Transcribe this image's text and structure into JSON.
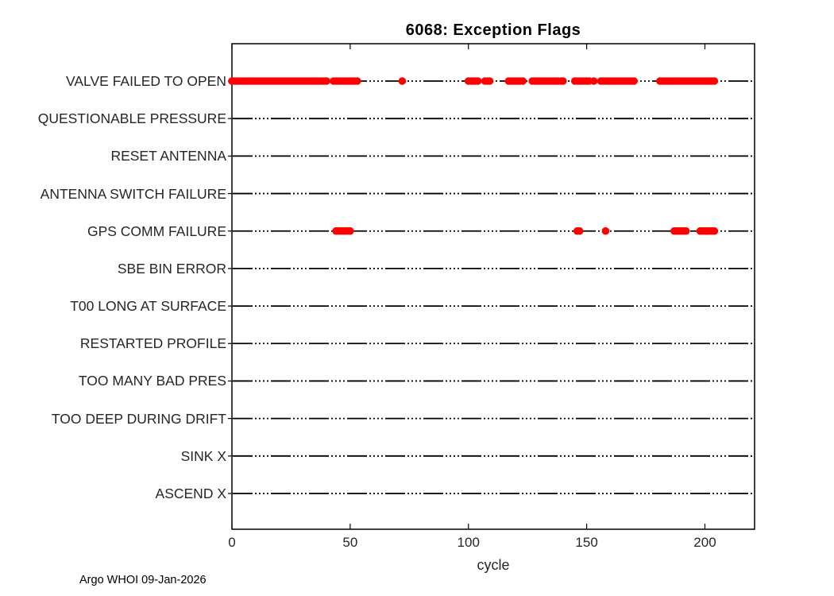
{
  "chart_data": {
    "type": "scatter",
    "title": "6068: Exception Flags",
    "xlabel": "cycle",
    "ylabel": "",
    "xlim": [
      0,
      221
    ],
    "xticks": [
      0,
      50,
      100,
      150,
      200
    ],
    "grid": false,
    "legend": "none",
    "marker": "dot",
    "marker_color": "#ff0000",
    "baseline_color": "#000000",
    "axis_color": "#000000",
    "tick_text_color": "#262626",
    "rows": [
      {
        "label": "VALVE FAILED TO OPEN",
        "runs": [
          [
            0,
            40
          ],
          [
            43,
            53
          ],
          [
            72,
            72
          ],
          [
            100,
            104
          ],
          [
            107,
            109
          ],
          [
            117,
            123
          ],
          [
            127,
            140
          ],
          [
            145,
            151
          ],
          [
            153,
            153
          ],
          [
            156,
            170
          ],
          [
            181,
            204
          ]
        ]
      },
      {
        "label": "QUESTIONABLE PRESSURE",
        "runs": []
      },
      {
        "label": "RESET ANTENNA",
        "runs": []
      },
      {
        "label": "ANTENNA SWITCH FAILURE",
        "runs": []
      },
      {
        "label": "GPS COMM FAILURE",
        "runs": [
          [
            44,
            50
          ],
          [
            146,
            147
          ],
          [
            158,
            158
          ],
          [
            187,
            192
          ],
          [
            198,
            204
          ]
        ]
      },
      {
        "label": "SBE BIN ERROR",
        "runs": []
      },
      {
        "label": "T00 LONG AT SURFACE",
        "runs": []
      },
      {
        "label": "RESTARTED PROFILE",
        "runs": []
      },
      {
        "label": "TOO MANY BAD PRES",
        "runs": []
      },
      {
        "label": "TOO DEEP DURING DRIFT",
        "runs": []
      },
      {
        "label": "SINK X",
        "runs": []
      },
      {
        "label": "ASCEND X",
        "runs": []
      }
    ]
  },
  "footer": {
    "credit": "Argo WHOI 09-Jan-2026"
  }
}
